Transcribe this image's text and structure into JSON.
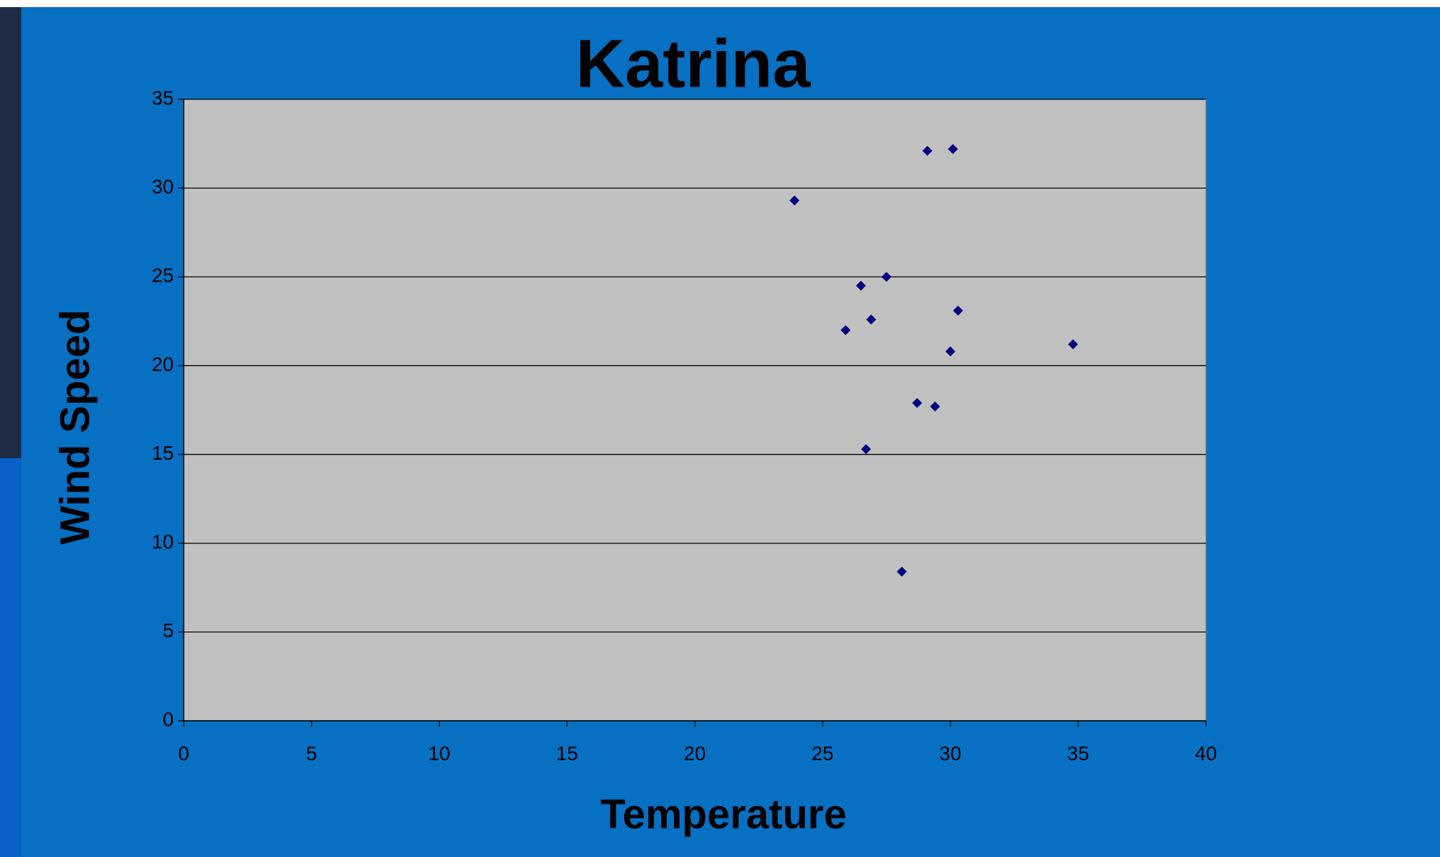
{
  "chart_data": {
    "type": "scatter",
    "title": "Katrina",
    "x_label": "Temperature",
    "y_label": "Wind Speed",
    "series": [
      {
        "color": "#000080",
        "x": [
          23.9,
          29.1,
          30.1,
          27.5,
          26.5,
          30.3,
          26.9,
          25.9,
          34.8,
          30.0,
          28.7,
          29.4,
          26.7,
          28.1
        ],
        "values": [
          29.3,
          32.1,
          32.2,
          25.0,
          24.5,
          23.1,
          22.6,
          22.0,
          21.2,
          20.8,
          17.9,
          17.7,
          15.3,
          8.4
        ]
      }
    ],
    "xlim": [
      0,
      40
    ],
    "xticks": [
      0,
      5,
      10,
      15,
      20,
      25,
      30,
      35,
      40
    ],
    "ylim": [
      0,
      35
    ],
    "yticks": [
      0,
      5,
      10,
      15,
      20,
      25,
      30,
      35
    ],
    "grid": true,
    "plot_background": "#c0c0c0"
  }
}
